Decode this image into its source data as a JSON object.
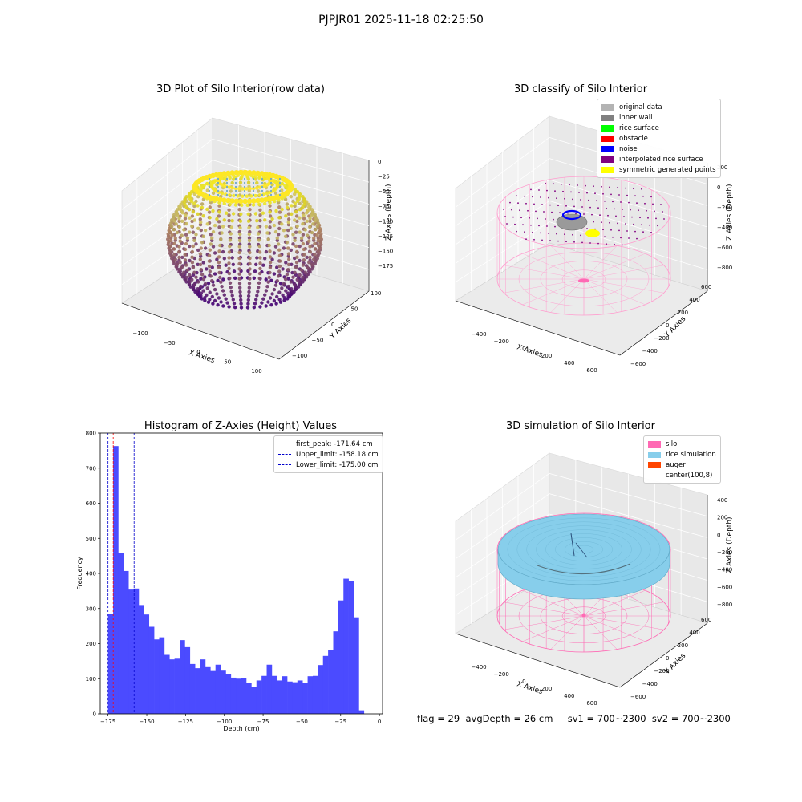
{
  "suptitle": "PJPJR01 2025-11-18 02:25:50",
  "footer": "flag = 29  avgDepth = 26 cm     sv1 = 700~2300  sv2 = 700~2300",
  "colors": {
    "hist_bar": "#4b4bff",
    "first_peak": "#ff0000",
    "limit": "#0000cc",
    "silo": "#ff69b4",
    "rice": "#87ceeb",
    "auger": "#ff4500"
  },
  "panels": {
    "raw": {
      "title": "3D Plot of Silo Interior(row data)",
      "xlabel": "X Axies",
      "ylabel": "Y Axies",
      "zlabel": "Z Axies (Depth)",
      "xticks": [
        "−100",
        "−50",
        "0",
        "50",
        "100"
      ],
      "yticks": [
        "100",
        "50",
        "0",
        "−50",
        "−100"
      ],
      "zticks": [
        "0",
        "−25",
        "−50",
        "−75",
        "−100",
        "−125",
        "−150",
        "−175"
      ]
    },
    "classify": {
      "title": "3D classify of Silo Interior",
      "xlabel": "X Axies",
      "ylabel": "Y Axies",
      "zlabel": "Z Axies (Depth)",
      "xticks": [
        "−400",
        "−200",
        "0",
        "200",
        "400",
        "600"
      ],
      "yticks": [
        "600",
        "400",
        "200",
        "0",
        "−200",
        "−400",
        "−600"
      ],
      "zticks": [
        "200",
        "0",
        "−200",
        "−400",
        "−600",
        "−800"
      ],
      "legend": [
        {
          "label": "original data",
          "color": "#b3b3b3"
        },
        {
          "label": "inner wall",
          "color": "#808080"
        },
        {
          "label": "rice surface",
          "color": "#00ff00"
        },
        {
          "label": "obstacle",
          "color": "#ff0000"
        },
        {
          "label": "noise",
          "color": "#0000ff"
        },
        {
          "label": "interpolated rice surface",
          "color": "#800080"
        },
        {
          "label": "symmetric generated points",
          "color": "#ffff00"
        }
      ]
    },
    "simulation": {
      "title": "3D simulation of Silo Interior",
      "xlabel": "X Axies",
      "ylabel": "Y Axies",
      "zlabel": "Z Axies (Depth)",
      "xticks": [
        "−400",
        "−200",
        "0",
        "200",
        "400",
        "600"
      ],
      "yticks": [
        "600",
        "400",
        "200",
        "0",
        "−200",
        "−400",
        "−600"
      ],
      "zticks": [
        "400",
        "200",
        "0",
        "−200",
        "−400",
        "−600",
        "−800"
      ],
      "legend": [
        {
          "label": "silo",
          "color": "#ff69b4"
        },
        {
          "label": "rice simulation",
          "color": "#87ceeb"
        },
        {
          "label": "auger",
          "color": "#ff4500"
        },
        {
          "label": "center(100,8)",
          "color": ""
        }
      ]
    }
  },
  "chart_data": {
    "type": "bar",
    "title": "Histogram of Z-Axies (Height) Values",
    "xlabel": "Depth (cm)",
    "ylabel": "Frequency",
    "xlim": [
      -180,
      2
    ],
    "ylim": [
      0,
      800
    ],
    "xticks": [
      -175,
      -150,
      -125,
      -100,
      -75,
      -50,
      -25,
      0
    ],
    "xtick_labels": [
      "−175",
      "−150",
      "−125",
      "−100",
      "−75",
      "−50",
      "−25",
      "0"
    ],
    "yticks": [
      0,
      100,
      200,
      300,
      400,
      500,
      600,
      700,
      800
    ],
    "bin_start": -175,
    "bin_width": 3.3,
    "values": [
      285,
      763,
      458,
      407,
      354,
      357,
      310,
      283,
      248,
      212,
      218,
      168,
      155,
      157,
      210,
      190,
      142,
      130,
      155,
      133,
      122,
      140,
      123,
      113,
      103,
      100,
      102,
      88,
      76,
      95,
      108,
      140,
      108,
      95,
      107,
      92,
      90,
      95,
      87,
      107,
      108,
      139,
      165,
      181,
      235,
      323,
      385,
      378,
      275,
      10
    ],
    "vlines": [
      {
        "label": "first_peak: -171.64 cm",
        "x": -171.64,
        "color": "#ff0000"
      },
      {
        "label": "Upper_limit: -158.18 cm",
        "x": -158.18,
        "color": "#0000cc"
      },
      {
        "label": "Lower_limit: -175.00 cm",
        "x": -175.0,
        "color": "#0000cc"
      }
    ],
    "legend_loc": "upper right",
    "grid": false
  }
}
